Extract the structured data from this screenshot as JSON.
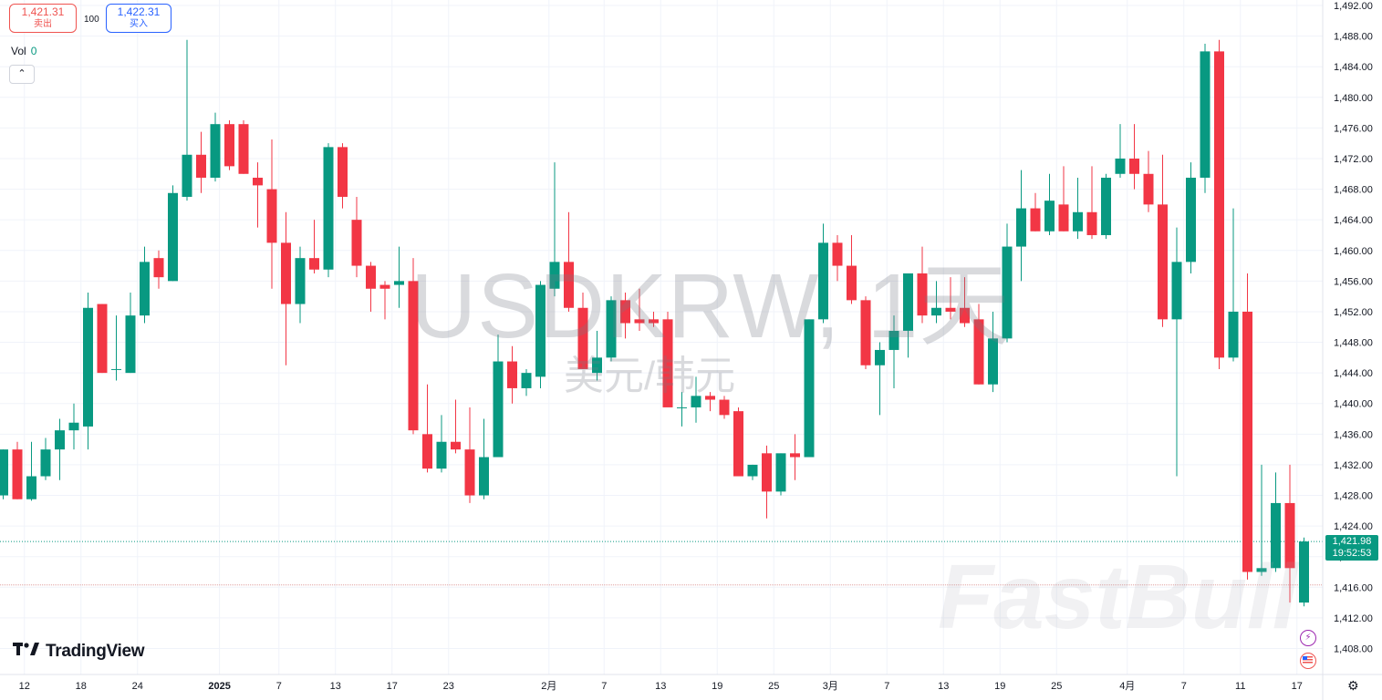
{
  "quote": {
    "sell_price": "1,421.31",
    "sell_label": "卖出",
    "spread": "100",
    "buy_price": "1,422.31",
    "buy_label": "买入"
  },
  "volume": {
    "label": "Vol",
    "value": "0"
  },
  "symbol_watermark": "USDKRW, 1天",
  "pair_watermark": "美元/韩元",
  "brand": "TradingView",
  "fastbull_watermark": "FastBull",
  "last_price": {
    "price": "1,421.98",
    "countdown": "19:52:53"
  },
  "icons": [
    "chevron-up-icon",
    "tradingview-logo-icon",
    "lightning-icon",
    "us-flag-icon",
    "settings-icon"
  ],
  "colors": {
    "up": "#089981",
    "down": "#f23645",
    "grid": "#f0f3fa",
    "axis_text": "#131722"
  },
  "chart_data": {
    "type": "candlestick",
    "symbol": "USDKRW",
    "interval": "1天",
    "y_axis": {
      "range": [
        1406,
        1493
      ],
      "ticks": [
        "1,492.00",
        "1,488.00",
        "1,484.00",
        "1,480.00",
        "1,476.00",
        "1,472.00",
        "1,468.00",
        "1,464.00",
        "1,460.00",
        "1,456.00",
        "1,452.00",
        "1,448.00",
        "1,444.00",
        "1,440.00",
        "1,436.00",
        "1,432.00",
        "1,428.00",
        "1,424.00",
        "1,420.00",
        "1,416.00",
        "1,412.00",
        "1,408.00"
      ]
    },
    "x_axis": {
      "ticks": [
        {
          "label": "12",
          "index": 1.5
        },
        {
          "label": "18",
          "index": 5.5
        },
        {
          "label": "24",
          "index": 9.5
        },
        {
          "label": "2025",
          "index": 15.3,
          "bold": true
        },
        {
          "label": "7",
          "index": 19.5
        },
        {
          "label": "13",
          "index": 23.5
        },
        {
          "label": "17",
          "index": 27.5
        },
        {
          "label": "23",
          "index": 31.5
        },
        {
          "label": "2月",
          "index": 38.6
        },
        {
          "label": "7",
          "index": 42.5
        },
        {
          "label": "13",
          "index": 46.5
        },
        {
          "label": "19",
          "index": 50.5
        },
        {
          "label": "25",
          "index": 54.5
        },
        {
          "label": "3月",
          "index": 58.5
        },
        {
          "label": "7",
          "index": 62.5
        },
        {
          "label": "13",
          "index": 66.5
        },
        {
          "label": "19",
          "index": 70.5
        },
        {
          "label": "25",
          "index": 74.5
        },
        {
          "label": "4月",
          "index": 79.5
        },
        {
          "label": "7",
          "index": 83.5
        },
        {
          "label": "11",
          "index": 87.5
        },
        {
          "label": "17",
          "index": 91.5
        }
      ]
    },
    "reference_lines": [
      1421.98,
      1416.3
    ],
    "candles": [
      {
        "o": 1428.0,
        "h": 1434.0,
        "l": 1427.5,
        "c": 1434.0
      },
      {
        "o": 1434.0,
        "h": 1435.0,
        "l": 1427.5,
        "c": 1427.5
      },
      {
        "o": 1427.5,
        "h": 1435.0,
        "l": 1427.3,
        "c": 1430.5
      },
      {
        "o": 1430.5,
        "h": 1435.5,
        "l": 1430.0,
        "c": 1434.0
      },
      {
        "o": 1434.0,
        "h": 1438.0,
        "l": 1430.0,
        "c": 1436.5
      },
      {
        "o": 1436.5,
        "h": 1440.0,
        "l": 1434.0,
        "c": 1437.5
      },
      {
        "o": 1437.0,
        "h": 1454.5,
        "l": 1434.0,
        "c": 1452.5
      },
      {
        "o": 1453.0,
        "h": 1453.0,
        "l": 1444.0,
        "c": 1444.0
      },
      {
        "o": 1444.5,
        "h": 1451.5,
        "l": 1443.0,
        "c": 1444.5
      },
      {
        "o": 1444.0,
        "h": 1454.5,
        "l": 1444.0,
        "c": 1451.5
      },
      {
        "o": 1451.5,
        "h": 1460.5,
        "l": 1450.5,
        "c": 1458.5
      },
      {
        "o": 1459.0,
        "h": 1460.0,
        "l": 1455.0,
        "c": 1456.5
      },
      {
        "o": 1456.0,
        "h": 1468.5,
        "l": 1456.0,
        "c": 1467.5
      },
      {
        "o": 1467.0,
        "h": 1487.5,
        "l": 1466.5,
        "c": 1472.5
      },
      {
        "o": 1472.5,
        "h": 1475.5,
        "l": 1467.5,
        "c": 1469.5
      },
      {
        "o": 1469.5,
        "h": 1478.0,
        "l": 1469.0,
        "c": 1476.5
      },
      {
        "o": 1476.5,
        "h": 1477.0,
        "l": 1470.5,
        "c": 1471.0
      },
      {
        "o": 1476.5,
        "h": 1477.0,
        "l": 1470.0,
        "c": 1470.0
      },
      {
        "o": 1469.5,
        "h": 1471.5,
        "l": 1463.0,
        "c": 1468.5
      },
      {
        "o": 1468.0,
        "h": 1474.5,
        "l": 1455.0,
        "c": 1461.0
      },
      {
        "o": 1461.0,
        "h": 1465.0,
        "l": 1445.0,
        "c": 1453.0
      },
      {
        "o": 1453.0,
        "h": 1460.5,
        "l": 1450.5,
        "c": 1459.0
      },
      {
        "o": 1459.0,
        "h": 1464.0,
        "l": 1457.0,
        "c": 1457.5
      },
      {
        "o": 1457.5,
        "h": 1474.0,
        "l": 1456.5,
        "c": 1473.5
      },
      {
        "o": 1473.5,
        "h": 1474.0,
        "l": 1465.5,
        "c": 1467.0
      },
      {
        "o": 1464.0,
        "h": 1467.0,
        "l": 1456.5,
        "c": 1458.0
      },
      {
        "o": 1458.0,
        "h": 1458.5,
        "l": 1452.0,
        "c": 1455.0
      },
      {
        "o": 1455.5,
        "h": 1456.0,
        "l": 1451.0,
        "c": 1455.0
      },
      {
        "o": 1455.5,
        "h": 1460.5,
        "l": 1452.5,
        "c": 1456.0
      },
      {
        "o": 1456.0,
        "h": 1459.0,
        "l": 1436.0,
        "c": 1436.5
      },
      {
        "o": 1436.0,
        "h": 1442.5,
        "l": 1431.0,
        "c": 1431.5
      },
      {
        "o": 1431.5,
        "h": 1438.5,
        "l": 1431.0,
        "c": 1435.0
      },
      {
        "o": 1435.0,
        "h": 1440.5,
        "l": 1433.5,
        "c": 1434.0
      },
      {
        "o": 1434.0,
        "h": 1439.5,
        "l": 1427.0,
        "c": 1428.0
      },
      {
        "o": 1428.0,
        "h": 1438.0,
        "l": 1427.5,
        "c": 1433.0
      },
      {
        "o": 1433.0,
        "h": 1449.0,
        "l": 1433.0,
        "c": 1445.5
      },
      {
        "o": 1445.5,
        "h": 1447.5,
        "l": 1440.0,
        "c": 1442.0
      },
      {
        "o": 1442.0,
        "h": 1444.5,
        "l": 1441.0,
        "c": 1444.0
      },
      {
        "o": 1443.5,
        "h": 1456.0,
        "l": 1442.0,
        "c": 1455.5
      },
      {
        "o": 1455.0,
        "h": 1471.5,
        "l": 1454.0,
        "c": 1458.5
      },
      {
        "o": 1458.5,
        "h": 1465.0,
        "l": 1452.0,
        "c": 1452.5
      },
      {
        "o": 1452.5,
        "h": 1454.5,
        "l": 1444.5,
        "c": 1444.5
      },
      {
        "o": 1444.0,
        "h": 1449.5,
        "l": 1443.0,
        "c": 1446.0
      },
      {
        "o": 1446.0,
        "h": 1454.0,
        "l": 1445.5,
        "c": 1453.5
      },
      {
        "o": 1453.5,
        "h": 1454.5,
        "l": 1448.5,
        "c": 1450.5
      },
      {
        "o": 1451.0,
        "h": 1455.0,
        "l": 1449.5,
        "c": 1450.5
      },
      {
        "o": 1451.0,
        "h": 1452.0,
        "l": 1450.0,
        "c": 1450.5
      },
      {
        "o": 1451.0,
        "h": 1452.0,
        "l": 1440.0,
        "c": 1439.5
      },
      {
        "o": 1439.5,
        "h": 1441.5,
        "l": 1437.0,
        "c": 1439.5
      },
      {
        "o": 1439.5,
        "h": 1443.5,
        "l": 1437.5,
        "c": 1441.0
      },
      {
        "o": 1441.0,
        "h": 1441.5,
        "l": 1439.0,
        "c": 1440.5
      },
      {
        "o": 1440.5,
        "h": 1441.0,
        "l": 1438.0,
        "c": 1438.5
      },
      {
        "o": 1439.0,
        "h": 1439.5,
        "l": 1430.5,
        "c": 1430.5
      },
      {
        "o": 1430.5,
        "h": 1432.0,
        "l": 1430.0,
        "c": 1432.0
      },
      {
        "o": 1433.5,
        "h": 1434.5,
        "l": 1425.0,
        "c": 1428.5
      },
      {
        "o": 1428.5,
        "h": 1433.5,
        "l": 1428.0,
        "c": 1433.5
      },
      {
        "o": 1433.5,
        "h": 1436.0,
        "l": 1430.0,
        "c": 1433.0
      },
      {
        "o": 1433.0,
        "h": 1451.0,
        "l": 1433.0,
        "c": 1451.0
      },
      {
        "o": 1451.0,
        "h": 1463.5,
        "l": 1450.5,
        "c": 1461.0
      },
      {
        "o": 1461.0,
        "h": 1462.0,
        "l": 1456.0,
        "c": 1458.0
      },
      {
        "o": 1458.0,
        "h": 1462.0,
        "l": 1453.0,
        "c": 1453.5
      },
      {
        "o": 1453.5,
        "h": 1454.0,
        "l": 1444.5,
        "c": 1445.0
      },
      {
        "o": 1445.0,
        "h": 1448.0,
        "l": 1438.5,
        "c": 1447.0
      },
      {
        "o": 1447.0,
        "h": 1451.5,
        "l": 1442.0,
        "c": 1449.5
      },
      {
        "o": 1449.5,
        "h": 1457.0,
        "l": 1446.0,
        "c": 1457.0
      },
      {
        "o": 1457.0,
        "h": 1460.5,
        "l": 1450.5,
        "c": 1451.5
      },
      {
        "o": 1451.5,
        "h": 1456.0,
        "l": 1450.5,
        "c": 1452.5
      },
      {
        "o": 1452.5,
        "h": 1456.5,
        "l": 1451.0,
        "c": 1452.0
      },
      {
        "o": 1452.5,
        "h": 1456.5,
        "l": 1450.0,
        "c": 1450.5
      },
      {
        "o": 1451.0,
        "h": 1453.0,
        "l": 1442.5,
        "c": 1442.5
      },
      {
        "o": 1442.5,
        "h": 1452.0,
        "l": 1441.5,
        "c": 1448.5
      },
      {
        "o": 1448.5,
        "h": 1463.5,
        "l": 1448.0,
        "c": 1460.5
      },
      {
        "o": 1460.5,
        "h": 1470.5,
        "l": 1456.0,
        "c": 1465.5
      },
      {
        "o": 1465.5,
        "h": 1467.5,
        "l": 1462.5,
        "c": 1462.5
      },
      {
        "o": 1462.5,
        "h": 1470.0,
        "l": 1462.0,
        "c": 1466.5
      },
      {
        "o": 1466.0,
        "h": 1471.0,
        "l": 1462.5,
        "c": 1462.5
      },
      {
        "o": 1462.5,
        "h": 1469.5,
        "l": 1461.5,
        "c": 1465.0
      },
      {
        "o": 1465.0,
        "h": 1471.0,
        "l": 1461.5,
        "c": 1462.0
      },
      {
        "o": 1462.0,
        "h": 1470.0,
        "l": 1461.5,
        "c": 1469.5
      },
      {
        "o": 1470.0,
        "h": 1476.5,
        "l": 1469.5,
        "c": 1472.0
      },
      {
        "o": 1472.0,
        "h": 1476.5,
        "l": 1468.0,
        "c": 1470.0
      },
      {
        "o": 1470.0,
        "h": 1473.0,
        "l": 1465.0,
        "c": 1466.0
      },
      {
        "o": 1466.0,
        "h": 1472.5,
        "l": 1450.0,
        "c": 1451.0
      },
      {
        "o": 1451.0,
        "h": 1463.0,
        "l": 1430.5,
        "c": 1458.5
      },
      {
        "o": 1458.5,
        "h": 1471.5,
        "l": 1457.0,
        "c": 1469.5
      },
      {
        "o": 1469.5,
        "h": 1487.0,
        "l": 1467.5,
        "c": 1486.0
      },
      {
        "o": 1486.0,
        "h": 1487.5,
        "l": 1444.5,
        "c": 1446.0
      },
      {
        "o": 1446.0,
        "h": 1465.5,
        "l": 1445.5,
        "c": 1452.0
      },
      {
        "o": 1452.0,
        "h": 1457.0,
        "l": 1417.0,
        "c": 1418.0
      },
      {
        "o": 1418.0,
        "h": 1432.0,
        "l": 1417.5,
        "c": 1418.5
      },
      {
        "o": 1418.5,
        "h": 1431.0,
        "l": 1418.0,
        "c": 1427.0
      },
      {
        "o": 1427.0,
        "h": 1432.0,
        "l": 1414.0,
        "c": 1418.5
      },
      {
        "o": 1414.0,
        "h": 1422.5,
        "l": 1413.5,
        "c": 1421.98
      }
    ]
  }
}
